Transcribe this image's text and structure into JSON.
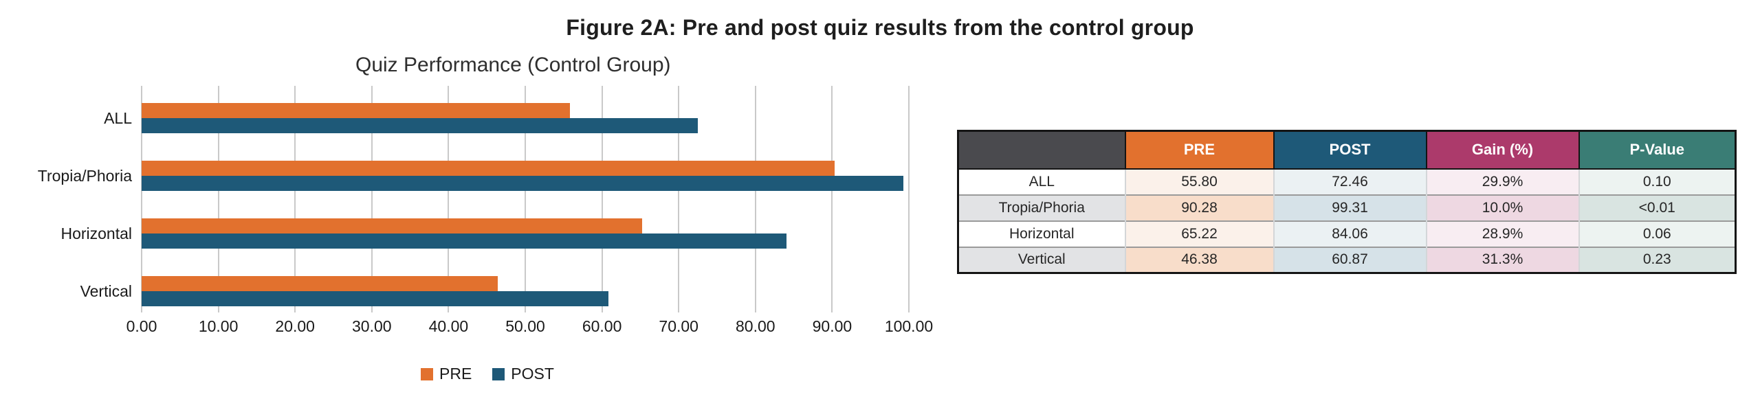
{
  "figure_title": "Figure 2A: Pre and post quiz results from the control group",
  "chart_data": {
    "type": "bar",
    "orientation": "horizontal",
    "title": "Quiz Performance (Control Group)",
    "categories": [
      "ALL",
      "Tropia/Phoria",
      "Horizontal",
      "Vertical"
    ],
    "series": [
      {
        "name": "PRE",
        "values": [
          55.8,
          90.28,
          65.22,
          46.38
        ]
      },
      {
        "name": "POST",
        "values": [
          72.46,
          99.31,
          84.06,
          60.87
        ]
      }
    ],
    "xlim": [
      0,
      100
    ],
    "xtick_labels": [
      "0.00",
      "10.00",
      "20.00",
      "30.00",
      "40.00",
      "50.00",
      "60.00",
      "70.00",
      "80.00",
      "90.00",
      "100.00"
    ],
    "grid": "vertical",
    "legend_position": "bottom",
    "colors": {
      "PRE": "#e2712e",
      "POST": "#1e5978"
    }
  },
  "legend": {
    "items": [
      {
        "label": "PRE",
        "color": "#e2712e"
      },
      {
        "label": "POST",
        "color": "#1e5978"
      }
    ]
  },
  "table": {
    "headers": [
      "",
      "PRE",
      "POST",
      "Gain (%)",
      "P-Value"
    ],
    "header_colors": [
      "#4a4a4e",
      "#e2712e",
      "#1e5978",
      "#ac3a6b",
      "#3a7d75"
    ],
    "rows": [
      {
        "label": "ALL",
        "pre": "55.80",
        "post": "72.46",
        "gain": "29.9%",
        "p": "0.10"
      },
      {
        "label": "Tropia/Phoria",
        "pre": "90.28",
        "post": "99.31",
        "gain": "10.0%",
        "p": "<0.01"
      },
      {
        "label": "Horizontal",
        "pre": "65.22",
        "post": "84.06",
        "gain": "28.9%",
        "p": "0.06"
      },
      {
        "label": "Vertical",
        "pre": "46.38",
        "post": "60.87",
        "gain": "31.3%",
        "p": "0.23"
      }
    ]
  },
  "colors": {
    "pre_orange": "#e2712e",
    "post_blue": "#1e5978",
    "gain_magenta": "#ac3a6b",
    "pvalue_teal": "#3a7d75",
    "header_gray": "#4a4a4e",
    "gridline": "#c9c9c9",
    "title_text": "#1e1e1e"
  }
}
